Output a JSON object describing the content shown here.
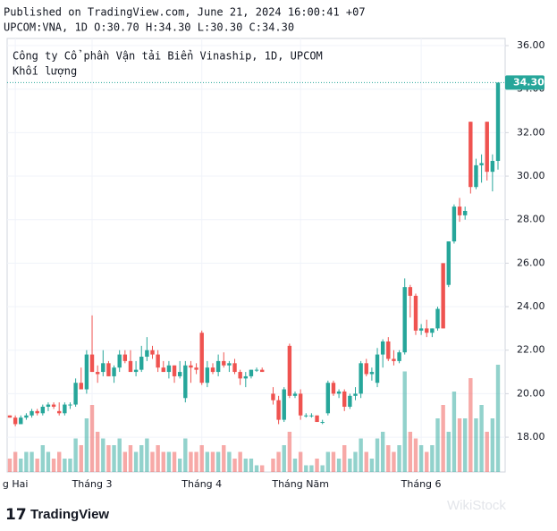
{
  "published": "Published on TradingView.com, June 21, 2024 16:00:41 +07",
  "symbol_line": "UPCOM:VNA, 1D O:30.70 H:34.30 L:30.30 C:34.30",
  "logo": "TradingView",
  "watermark": "WikiStock",
  "chart_data": {
    "type": "candlestick",
    "title": "Công ty Cổ phần Vận tải Biển Vinaship, 1D, UPCOM",
    "volume_label": "Khối lượng",
    "categories": [
      null,
      "g Hai",
      null,
      null,
      null,
      null,
      null,
      null,
      null,
      null,
      null,
      null,
      null,
      null,
      null,
      "Tháng 3",
      null,
      null,
      null,
      null,
      null,
      null,
      null,
      null,
      null,
      null,
      null,
      null,
      null,
      null,
      null,
      null,
      null,
      null,
      null,
      "Tháng 4",
      null,
      null,
      null,
      null,
      null,
      null,
      null,
      null,
      null,
      null,
      null,
      null,
      null,
      null,
      null,
      null,
      null,
      "Tháng Năm",
      null,
      null,
      null,
      null,
      null,
      null,
      null,
      null,
      null,
      null,
      null,
      null,
      null,
      null,
      null,
      null,
      null,
      null,
      null,
      null,
      null,
      "Tháng 6",
      null,
      null,
      null,
      null,
      null,
      null,
      null,
      null,
      null,
      null,
      null,
      null,
      null,
      null
    ],
    "open": [
      19.0,
      18.9,
      18.6,
      18.9,
      19.0,
      19.2,
      19.1,
      19.4,
      19.5,
      19.2,
      19.1,
      19.5,
      19.5,
      20.5,
      20.2,
      21.8,
      21.0,
      21.0,
      21.4,
      20.8,
      21.2,
      21.8,
      21.5,
      21.0,
      21.1,
      21.7,
      22.0,
      21.8,
      21.2,
      21.0,
      21.3,
      20.8,
      19.8,
      21.3,
      21.2,
      22.8,
      20.5,
      21.2,
      21.0,
      21.5,
      21.3,
      21.4,
      21.0,
      20.7,
      20.8,
      21.1,
      21.1,
      null,
      20.0,
      19.7,
      18.8,
      22.2,
      19.9,
      20.0,
      19.0,
      19.0,
      19.0,
      18.7,
      19.1,
      20.5,
      20.0,
      20.1,
      19.4,
      19.9,
      20.0,
      21.4,
      20.9,
      20.5,
      21.8,
      22.4,
      21.6,
      21.5,
      21.9,
      24.9,
      24.5,
      22.9,
      23.0,
      22.8,
      23.0,
      26.0,
      25.0,
      27.0,
      28.6,
      28.2,
      32.5,
      29.5,
      30.5,
      32.5,
      30.2,
      30.7
    ],
    "high": [
      19.0,
      19.0,
      19.0,
      19.1,
      19.3,
      19.3,
      19.5,
      19.6,
      19.6,
      19.6,
      19.6,
      19.6,
      20.7,
      21.2,
      22.0,
      23.6,
      21.3,
      22.0,
      21.5,
      21.3,
      22.0,
      22.0,
      22.0,
      21.5,
      22.2,
      22.6,
      22.2,
      22.0,
      21.5,
      21.5,
      21.3,
      21.5,
      21.5,
      21.5,
      21.4,
      22.9,
      21.5,
      21.4,
      21.8,
      21.9,
      21.5,
      21.6,
      21.1,
      21.0,
      21.1,
      21.2,
      21.2,
      null,
      20.3,
      19.9,
      20.3,
      22.3,
      20.1,
      20.2,
      19.1,
      19.1,
      19.0,
      18.8,
      20.6,
      20.6,
      20.2,
      20.2,
      20.0,
      20.3,
      21.5,
      21.6,
      21.2,
      22.1,
      22.5,
      22.6,
      22.0,
      22.0,
      25.3,
      25.0,
      24.6,
      23.2,
      23.4,
      23.0,
      24.0,
      26.0,
      27.0,
      28.7,
      29.0,
      28.6,
      32.5,
      30.8,
      31.0,
      32.5,
      31.0,
      34.3
    ],
    "low": [
      18.9,
      18.5,
      18.6,
      18.8,
      18.9,
      19.0,
      19.0,
      19.2,
      19.3,
      19.0,
      19.0,
      19.3,
      19.4,
      20.2,
      20.0,
      21.0,
      20.5,
      20.8,
      20.8,
      20.5,
      21.0,
      21.4,
      21.0,
      20.8,
      21.0,
      21.5,
      21.6,
      21.0,
      21.0,
      20.7,
      20.5,
      20.7,
      19.6,
      20.5,
      20.9,
      20.4,
      20.3,
      20.9,
      20.8,
      21.2,
      21.0,
      20.9,
      20.4,
      20.3,
      20.7,
      21.0,
      21.0,
      null,
      19.5,
      18.6,
      18.7,
      19.8,
      19.8,
      18.8,
      18.9,
      18.9,
      18.7,
      18.6,
      19.0,
      19.9,
      19.8,
      19.2,
      19.3,
      19.7,
      19.8,
      20.8,
      20.6,
      20.3,
      21.2,
      21.5,
      21.3,
      21.4,
      21.8,
      23.5,
      22.7,
      22.7,
      22.6,
      22.6,
      22.9,
      23.0,
      24.9,
      26.9,
      27.9,
      28.0,
      29.2,
      29.4,
      29.7,
      29.8,
      29.3,
      30.3
    ],
    "close": [
      18.9,
      18.6,
      18.9,
      19.0,
      19.2,
      19.1,
      19.4,
      19.5,
      19.4,
      19.1,
      19.5,
      19.5,
      20.5,
      20.2,
      21.8,
      21.0,
      20.9,
      21.4,
      20.8,
      21.2,
      21.8,
      21.5,
      21.0,
      21.1,
      21.7,
      22.0,
      21.8,
      21.2,
      21.0,
      21.3,
      20.8,
      21.0,
      21.3,
      21.2,
      21.1,
      20.5,
      21.2,
      21.0,
      21.5,
      21.3,
      21.4,
      21.0,
      20.7,
      20.8,
      21.1,
      21.1,
      21.0,
      null,
      19.7,
      18.8,
      20.2,
      19.9,
      20.0,
      19.0,
      19.0,
      19.0,
      18.7,
      18.7,
      20.5,
      20.0,
      20.1,
      19.4,
      19.9,
      20.0,
      21.4,
      20.9,
      21.0,
      21.8,
      22.4,
      21.6,
      21.5,
      21.9,
      24.9,
      24.5,
      22.9,
      23.0,
      22.8,
      23.0,
      23.9,
      23.0,
      27.0,
      28.6,
      28.2,
      28.4,
      29.5,
      30.5,
      30.6,
      30.2,
      30.7,
      34.3
    ],
    "volume": [
      2,
      3,
      2,
      3,
      3,
      2,
      4,
      3,
      2,
      3,
      2,
      2,
      5,
      4,
      8,
      10,
      6,
      5,
      4,
      4,
      5,
      3,
      4,
      3,
      4,
      5,
      3,
      4,
      3,
      3,
      3,
      2,
      5,
      3,
      3,
      4,
      3,
      3,
      3,
      4,
      3,
      2,
      3,
      2,
      2,
      1,
      1,
      null,
      2,
      3,
      4,
      6,
      2,
      3,
      1,
      1,
      2,
      1,
      3,
      3,
      2,
      4,
      2,
      3,
      5,
      3,
      2,
      5,
      6,
      4,
      3,
      4,
      15,
      6,
      5,
      4,
      3,
      4,
      8,
      10,
      6,
      12,
      8,
      8,
      14,
      8,
      10,
      6,
      8,
      16
    ],
    "up_color": "#26a69a",
    "down_color": "#ef5350",
    "ylim": [
      16.4,
      36.33
    ],
    "yticks": [
      {
        "value": 18,
        "label": "18.00"
      },
      {
        "value": 20,
        "label": "20.00"
      },
      {
        "value": 22,
        "label": "22.00"
      },
      {
        "value": 24,
        "label": "24.00"
      },
      {
        "value": 26,
        "label": "26.00"
      },
      {
        "value": 28,
        "label": "28.00"
      },
      {
        "value": 30,
        "label": "30.00"
      },
      {
        "value": 32,
        "label": "32.00"
      },
      {
        "value": 34,
        "label": "34.00"
      },
      {
        "value": 36,
        "label": "36.00"
      }
    ],
    "last_value": {
      "value": 34.3,
      "label": "34.30"
    },
    "grid": true
  }
}
